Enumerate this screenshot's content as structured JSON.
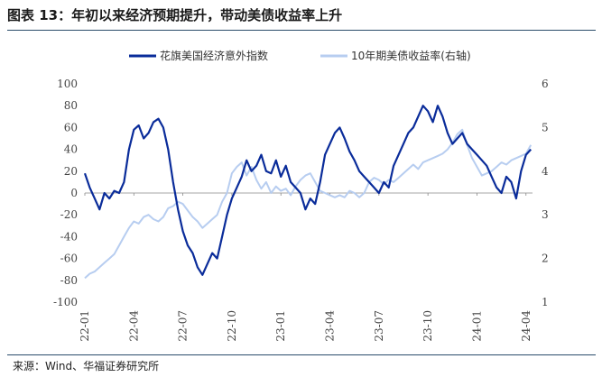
{
  "title": "图表 13：年初以来经济预期提升，带动美债收益率上升",
  "source": "来源：Wind、华福证券研究所",
  "colors": {
    "primary_series": "#0a2c9a",
    "secondary_series": "#b7cdf0",
    "rule": "#2a4c6a"
  },
  "chart_data": {
    "type": "line",
    "legend_position": "top-center",
    "grid": false,
    "x_ticks": [
      "22-01",
      "22-04",
      "22-07",
      "22-10",
      "23-01",
      "23-04",
      "23-07",
      "23-10",
      "24-01",
      "24-04"
    ],
    "x_range": [
      0,
      27.4
    ],
    "left_axis": {
      "range": [
        -100,
        100
      ],
      "ticks": [
        "100",
        "80",
        "60",
        "40",
        "20",
        "0",
        "-20",
        "-40",
        "-60",
        "-80",
        "-100"
      ]
    },
    "right_axis": {
      "range": [
        1,
        6
      ],
      "ticks": [
        "6",
        "5",
        "4",
        "3",
        "2",
        "1"
      ]
    },
    "series": [
      {
        "name": "花旗美国经济意外指数",
        "axis": "left",
        "x": [
          0,
          0.3,
          0.6,
          0.9,
          1.2,
          1.5,
          1.8,
          2.1,
          2.4,
          2.7,
          3.0,
          3.3,
          3.6,
          3.9,
          4.2,
          4.5,
          4.8,
          5.1,
          5.4,
          5.7,
          6.0,
          6.3,
          6.6,
          6.9,
          7.2,
          7.5,
          7.8,
          8.1,
          8.4,
          8.7,
          9.0,
          9.3,
          9.6,
          9.9,
          10.2,
          10.5,
          10.8,
          11.1,
          11.4,
          11.7,
          12.0,
          12.3,
          12.6,
          12.9,
          13.2,
          13.5,
          13.8,
          14.1,
          14.4,
          14.7,
          15.0,
          15.3,
          15.6,
          15.9,
          16.2,
          16.5,
          16.8,
          17.1,
          17.4,
          17.7,
          18.0,
          18.3,
          18.6,
          18.9,
          19.2,
          19.5,
          19.8,
          20.1,
          20.4,
          20.7,
          21.0,
          21.3,
          21.6,
          21.9,
          22.2,
          22.5,
          22.8,
          23.1,
          23.4,
          23.7,
          24.0,
          24.3,
          24.6,
          24.9,
          25.2,
          25.5,
          25.8,
          26.1,
          26.4,
          26.7,
          27.0,
          27.3
        ],
        "values": [
          18,
          5,
          -5,
          -15,
          0,
          -5,
          2,
          0,
          10,
          40,
          58,
          62,
          50,
          55,
          65,
          68,
          60,
          40,
          10,
          -15,
          -35,
          -48,
          -55,
          -68,
          -75,
          -65,
          -55,
          -60,
          -40,
          -20,
          -5,
          5,
          15,
          30,
          20,
          25,
          35,
          20,
          18,
          30,
          15,
          25,
          10,
          5,
          0,
          -15,
          -5,
          -10,
          10,
          35,
          45,
          55,
          60,
          50,
          38,
          30,
          20,
          15,
          10,
          5,
          0,
          10,
          5,
          25,
          35,
          45,
          55,
          60,
          70,
          80,
          75,
          65,
          80,
          70,
          55,
          45,
          50,
          55,
          45,
          40,
          35,
          30,
          25,
          15,
          5,
          0,
          15,
          10,
          -5,
          20,
          35,
          40
        ]
      },
      {
        "name": "10年期美债收益率(右轴)",
        "axis": "right",
        "x": [
          0,
          0.3,
          0.6,
          0.9,
          1.2,
          1.5,
          1.8,
          2.1,
          2.4,
          2.7,
          3.0,
          3.3,
          3.6,
          3.9,
          4.2,
          4.5,
          4.8,
          5.1,
          5.4,
          5.7,
          6.0,
          6.3,
          6.6,
          6.9,
          7.2,
          7.5,
          7.8,
          8.1,
          8.4,
          8.7,
          9.0,
          9.3,
          9.6,
          9.9,
          10.2,
          10.5,
          10.8,
          11.1,
          11.4,
          11.7,
          12.0,
          12.3,
          12.6,
          12.9,
          13.2,
          13.5,
          13.8,
          14.1,
          14.4,
          14.7,
          15.0,
          15.3,
          15.6,
          15.9,
          16.2,
          16.5,
          16.8,
          17.1,
          17.4,
          17.7,
          18.0,
          18.3,
          18.6,
          18.9,
          19.2,
          19.5,
          19.8,
          20.1,
          20.4,
          20.7,
          21.0,
          21.3,
          21.6,
          21.9,
          22.2,
          22.5,
          22.8,
          23.1,
          23.4,
          23.7,
          24.0,
          24.3,
          24.6,
          24.9,
          25.2,
          25.5,
          25.8,
          26.1,
          26.4,
          26.7,
          27.0,
          27.3
        ],
        "values": [
          1.55,
          1.65,
          1.7,
          1.8,
          1.9,
          2.0,
          2.1,
          2.3,
          2.5,
          2.7,
          2.85,
          2.8,
          2.95,
          3.0,
          2.9,
          2.85,
          2.95,
          3.15,
          3.2,
          3.3,
          3.25,
          3.1,
          2.95,
          2.85,
          2.7,
          2.8,
          2.9,
          3.0,
          3.3,
          3.5,
          3.95,
          4.1,
          4.2,
          3.9,
          4.1,
          3.8,
          3.6,
          3.75,
          3.5,
          3.65,
          3.55,
          3.6,
          3.45,
          3.65,
          3.8,
          3.9,
          3.95,
          3.75,
          3.55,
          3.5,
          3.45,
          3.4,
          3.45,
          3.4,
          3.55,
          3.5,
          3.4,
          3.5,
          3.75,
          3.85,
          3.8,
          3.7,
          3.8,
          3.75,
          3.85,
          3.95,
          4.05,
          4.15,
          4.05,
          4.2,
          4.25,
          4.3,
          4.35,
          4.4,
          4.5,
          4.65,
          4.85,
          4.95,
          4.6,
          4.3,
          4.1,
          3.9,
          3.95,
          4.0,
          4.1,
          4.2,
          4.15,
          4.25,
          4.3,
          4.35,
          4.4,
          4.6
        ]
      }
    ]
  }
}
